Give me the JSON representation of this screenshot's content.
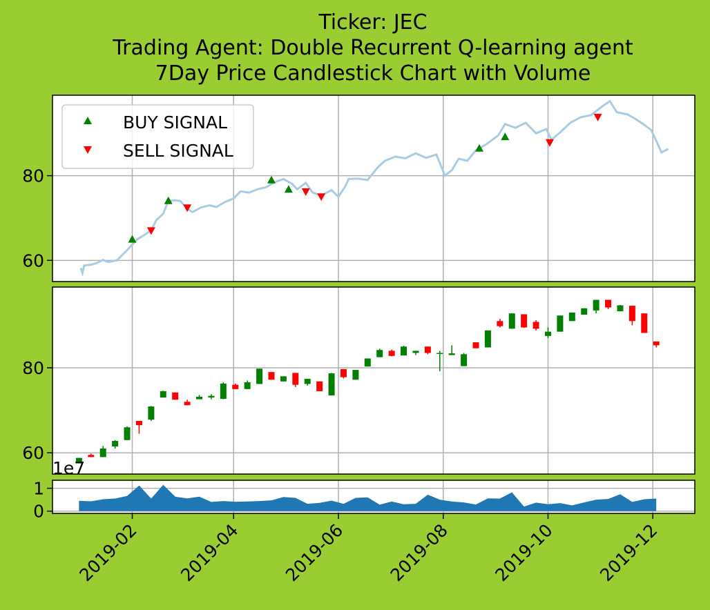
{
  "title_lines": [
    "Ticker: JEC",
    "Trading Agent: Double Recurrent Q-learning agent",
    "7Day Price Candlestick Chart with Volume"
  ],
  "colors": {
    "background": "#9acd32",
    "price_line": "#a9cce3",
    "buy": "#008000",
    "sell": "#ff0000",
    "volume": "#1f77b4",
    "grid": "#b0b0b0"
  },
  "chart_data": [
    {
      "type": "line",
      "panel": "price-signals",
      "ylim": [
        55,
        99
      ],
      "yticks": [
        60,
        80
      ],
      "grid": true,
      "legend_position": "upper left",
      "legend": [
        "BUY SIGNAL",
        "SELL SIGNAL"
      ],
      "series": [
        {
          "values": [
            [
              "2019-01-02",
              58.2
            ],
            [
              "2019-01-03",
              57.0
            ],
            [
              "2019-01-04",
              58.8
            ],
            [
              "2019-01-08",
              59.0
            ],
            [
              "2019-01-11",
              59.3
            ],
            [
              "2019-01-15",
              60.1
            ],
            [
              "2019-01-18",
              59.6
            ],
            [
              "2019-01-23",
              60.0
            ],
            [
              "2019-01-28",
              62.0
            ],
            [
              "2019-01-31",
              63.3
            ],
            [
              "2019-02-04",
              65.0
            ],
            [
              "2019-02-08",
              66.0
            ],
            [
              "2019-02-12",
              67.1
            ],
            [
              "2019-02-15",
              69.5
            ],
            [
              "2019-02-19",
              71.0
            ],
            [
              "2019-02-22",
              74.0
            ],
            [
              "2019-02-26",
              74.2
            ],
            [
              "2019-03-01",
              74.0
            ],
            [
              "2019-03-05",
              72.2
            ],
            [
              "2019-03-08",
              71.4
            ],
            [
              "2019-03-13",
              72.5
            ],
            [
              "2019-03-18",
              73.0
            ],
            [
              "2019-03-22",
              72.6
            ],
            [
              "2019-03-27",
              73.8
            ],
            [
              "2019-04-01",
              74.6
            ],
            [
              "2019-04-05",
              76.3
            ],
            [
              "2019-04-10",
              76.0
            ],
            [
              "2019-04-15",
              76.8
            ],
            [
              "2019-04-20",
              77.3
            ],
            [
              "2019-04-25",
              78.5
            ],
            [
              "2019-04-30",
              79.2
            ],
            [
              "2019-05-05",
              78.1
            ],
            [
              "2019-05-08",
              76.8
            ],
            [
              "2019-05-13",
              78.3
            ],
            [
              "2019-05-17",
              76.0
            ],
            [
              "2019-05-22",
              75.3
            ],
            [
              "2019-05-28",
              76.6
            ],
            [
              "2019-06-01",
              75.0
            ],
            [
              "2019-06-05",
              77.5
            ],
            [
              "2019-06-07",
              79.2
            ],
            [
              "2019-06-12",
              79.3
            ],
            [
              "2019-06-18",
              79.0
            ],
            [
              "2019-06-24",
              82.0
            ],
            [
              "2019-06-28",
              83.5
            ],
            [
              "2019-07-04",
              84.5
            ],
            [
              "2019-07-10",
              84.1
            ],
            [
              "2019-07-16",
              85.3
            ],
            [
              "2019-07-22",
              84.2
            ],
            [
              "2019-07-28",
              85.0
            ],
            [
              "2019-08-02",
              80.0
            ],
            [
              "2019-08-06",
              81.3
            ],
            [
              "2019-08-10",
              84.0
            ],
            [
              "2019-08-15",
              83.5
            ],
            [
              "2019-08-20",
              86.0
            ],
            [
              "2019-08-26",
              87.4
            ],
            [
              "2019-09-02",
              89.5
            ],
            [
              "2019-09-06",
              92.2
            ],
            [
              "2019-09-12",
              91.3
            ],
            [
              "2019-09-18",
              92.5
            ],
            [
              "2019-09-24",
              90.0
            ],
            [
              "2019-09-30",
              91.0
            ],
            [
              "2019-10-03",
              88.5
            ],
            [
              "2019-10-08",
              90.2
            ],
            [
              "2019-10-14",
              92.5
            ],
            [
              "2019-10-20",
              93.8
            ],
            [
              "2019-10-26",
              94.3
            ],
            [
              "2019-11-02",
              96.5
            ],
            [
              "2019-11-06",
              97.6
            ],
            [
              "2019-11-10",
              95.0
            ],
            [
              "2019-11-16",
              94.5
            ],
            [
              "2019-11-20",
              93.6
            ],
            [
              "2019-11-25",
              92.3
            ],
            [
              "2019-11-30",
              90.8
            ],
            [
              "2019-12-03",
              88.2
            ],
            [
              "2019-12-06",
              85.5
            ],
            [
              "2019-12-10",
              86.3
            ]
          ]
        }
      ],
      "buy_signals": [
        [
          "2019-02-01",
          65.0
        ],
        [
          "2019-02-22",
          74.1
        ],
        [
          "2019-04-23",
          79.0
        ],
        [
          "2019-05-03",
          76.8
        ],
        [
          "2019-08-22",
          86.5
        ],
        [
          "2019-09-06",
          89.2
        ]
      ],
      "sell_signals": [
        [
          "2019-02-12",
          67.0
        ],
        [
          "2019-03-05",
          72.4
        ],
        [
          "2019-05-13",
          76.2
        ],
        [
          "2019-05-22",
          75.0
        ],
        [
          "2019-10-02",
          87.8
        ],
        [
          "2019-10-30",
          93.8
        ]
      ]
    },
    {
      "type": "candlestick",
      "panel": "candles",
      "ylim": [
        55,
        99
      ],
      "yticks": [
        60,
        80
      ],
      "grid": true,
      "candles": [
        [
          "2019-01-01",
          57.5,
          58.8,
          57.5,
          58.8
        ],
        [
          "2019-01-08",
          59.5,
          59.8,
          59.0,
          59.0
        ],
        [
          "2019-01-15",
          59.0,
          61.6,
          59.0,
          61.0
        ],
        [
          "2019-01-22",
          61.5,
          63.0,
          61.0,
          62.8
        ],
        [
          "2019-01-29",
          63.0,
          66.2,
          63.0,
          66.0
        ],
        [
          "2019-02-05",
          67.5,
          67.5,
          64.5,
          66.5
        ],
        [
          "2019-02-12",
          67.8,
          71.0,
          67.5,
          70.9
        ],
        [
          "2019-02-19",
          73.0,
          74.6,
          73.0,
          74.5
        ],
        [
          "2019-02-26",
          74.2,
          74.2,
          72.5,
          72.5
        ],
        [
          "2019-03-05",
          72.0,
          72.5,
          71.2,
          71.2
        ],
        [
          "2019-03-12",
          72.6,
          73.6,
          72.6,
          73.2
        ],
        [
          "2019-03-19",
          73.0,
          73.8,
          72.6,
          73.4
        ],
        [
          "2019-03-26",
          72.7,
          76.6,
          72.6,
          76.3
        ],
        [
          "2019-04-02",
          76.0,
          76.3,
          75.0,
          75.0
        ],
        [
          "2019-04-09",
          75.0,
          77.0,
          75.0,
          76.6
        ],
        [
          "2019-04-16",
          76.2,
          79.8,
          76.2,
          79.8
        ],
        [
          "2019-04-23",
          79.0,
          79.0,
          77.2,
          77.2
        ],
        [
          "2019-04-30",
          76.8,
          78.0,
          76.8,
          78.0
        ],
        [
          "2019-05-07",
          78.8,
          78.8,
          75.5,
          76.0
        ],
        [
          "2019-05-14",
          76.2,
          77.4,
          75.8,
          77.4
        ],
        [
          "2019-05-21",
          76.8,
          76.8,
          74.5,
          74.5
        ],
        [
          "2019-05-28",
          73.5,
          78.8,
          73.5,
          78.7
        ],
        [
          "2019-06-04",
          79.7,
          79.7,
          77.5,
          77.8
        ],
        [
          "2019-06-11",
          77.2,
          79.5,
          77.2,
          79.5
        ],
        [
          "2019-06-18",
          80.3,
          82.2,
          80.3,
          82.2
        ],
        [
          "2019-06-25",
          82.5,
          84.5,
          82.5,
          84.2
        ],
        [
          "2019-07-02",
          84.0,
          84.3,
          82.7,
          82.8
        ],
        [
          "2019-07-09",
          82.9,
          85.2,
          82.9,
          85.0
        ],
        [
          "2019-07-16",
          83.5,
          84.0,
          83.0,
          84.0
        ],
        [
          "2019-07-23",
          85.0,
          85.0,
          83.2,
          83.5
        ],
        [
          "2019-07-30",
          83.5,
          84.0,
          79.2,
          83.5
        ],
        [
          "2019-08-06",
          83.0,
          85.3,
          83.0,
          83.4
        ],
        [
          "2019-08-13",
          80.4,
          83.5,
          80.4,
          83.2
        ],
        [
          "2019-08-20",
          86.0,
          86.0,
          84.6,
          84.6
        ],
        [
          "2019-08-27",
          84.8,
          88.8,
          84.8,
          88.8
        ],
        [
          "2019-09-03",
          91.0,
          91.5,
          89.5,
          89.8
        ],
        [
          "2019-09-10",
          89.2,
          92.8,
          89.2,
          92.8
        ],
        [
          "2019-09-17",
          92.6,
          92.6,
          89.4,
          89.5
        ],
        [
          "2019-09-24",
          90.8,
          91.2,
          88.8,
          89.2
        ],
        [
          "2019-10-01",
          87.5,
          89.5,
          87.0,
          88.5
        ],
        [
          "2019-10-08",
          88.5,
          92.3,
          88.5,
          92.3
        ],
        [
          "2019-10-15",
          91.0,
          93.0,
          91.0,
          93.0
        ],
        [
          "2019-10-22",
          92.5,
          94.0,
          92.5,
          94.0
        ],
        [
          "2019-10-29",
          93.5,
          96.0,
          92.8,
          96.0
        ],
        [
          "2019-11-05",
          96.0,
          96.0,
          93.8,
          94.2
        ],
        [
          "2019-11-12",
          93.3,
          94.8,
          93.3,
          94.7
        ],
        [
          "2019-11-19",
          94.6,
          94.6,
          90.0,
          91.0
        ],
        [
          "2019-11-26",
          92.8,
          92.8,
          88.2,
          88.2
        ],
        [
          "2019-12-03",
          86.2,
          86.2,
          84.8,
          85.3
        ]
      ]
    },
    {
      "type": "area",
      "panel": "volume",
      "offset_label": "1e7",
      "ylim": [
        -0.1,
        1.35
      ],
      "yticks": [
        0,
        1
      ],
      "grid": true,
      "x": [
        "2019-01-01",
        "2019-01-08",
        "2019-01-15",
        "2019-01-22",
        "2019-01-29",
        "2019-02-05",
        "2019-02-12",
        "2019-02-19",
        "2019-02-26",
        "2019-03-05",
        "2019-03-12",
        "2019-03-19",
        "2019-03-26",
        "2019-04-02",
        "2019-04-09",
        "2019-04-16",
        "2019-04-23",
        "2019-04-30",
        "2019-05-07",
        "2019-05-14",
        "2019-05-21",
        "2019-05-28",
        "2019-06-04",
        "2019-06-11",
        "2019-06-18",
        "2019-06-25",
        "2019-07-02",
        "2019-07-09",
        "2019-07-16",
        "2019-07-23",
        "2019-07-30",
        "2019-08-06",
        "2019-08-13",
        "2019-08-20",
        "2019-08-27",
        "2019-09-03",
        "2019-09-10",
        "2019-09-17",
        "2019-09-24",
        "2019-10-01",
        "2019-10-08",
        "2019-10-15",
        "2019-10-22",
        "2019-10-29",
        "2019-11-05",
        "2019-11-12",
        "2019-11-19",
        "2019-11-26",
        "2019-12-03"
      ],
      "values": [
        0.45,
        0.43,
        0.52,
        0.55,
        0.66,
        1.12,
        0.55,
        1.15,
        0.63,
        0.56,
        0.63,
        0.4,
        0.44,
        0.41,
        0.42,
        0.44,
        0.47,
        0.62,
        0.58,
        0.32,
        0.36,
        0.46,
        0.32,
        0.58,
        0.6,
        0.28,
        0.42,
        0.3,
        0.32,
        0.72,
        0.5,
        0.42,
        0.38,
        0.29,
        0.56,
        0.55,
        0.82,
        0.2,
        0.37,
        0.3,
        0.35,
        0.25,
        0.38,
        0.5,
        0.53,
        0.74,
        0.4,
        0.52,
        0.55
      ]
    }
  ],
  "x_axis": {
    "ticks": [
      "2019-02",
      "2019-04",
      "2019-06",
      "2019-08",
      "2019-10",
      "2019-12"
    ]
  }
}
